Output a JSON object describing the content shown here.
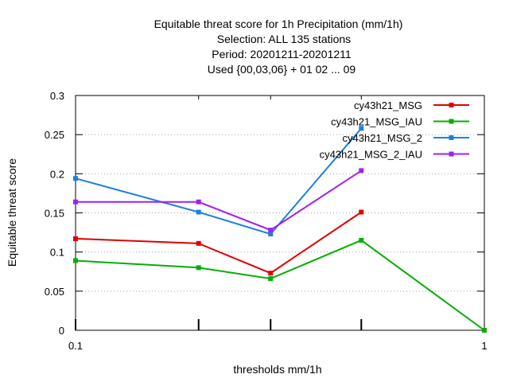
{
  "chart_data": {
    "type": "line",
    "title_lines": [
      "Equitable threat score  for 1h Precipitation (mm/1h)",
      "Selection: ALL    135 stations",
      "Period: 20201211-20201211",
      "Used {00,03,06} + 01 02 ... 09"
    ],
    "xlabel": "thresholds mm/1h",
    "ylabel": "Equitable threat score",
    "x_scale": "log",
    "xlim": [
      0.1,
      1
    ],
    "ylim": [
      0,
      0.3
    ],
    "x_ticks": [
      {
        "value": 0.1,
        "label": "0.1"
      },
      {
        "value": 1,
        "label": "1"
      }
    ],
    "x_minor_ticks": [
      0.2,
      0.3,
      0.5
    ],
    "y_ticks": [
      {
        "value": 0,
        "label": "0"
      },
      {
        "value": 0.05,
        "label": "0.05"
      },
      {
        "value": 0.1,
        "label": "0.1"
      },
      {
        "value": 0.15,
        "label": "0.15"
      },
      {
        "value": 0.2,
        "label": "0.2"
      },
      {
        "value": 0.25,
        "label": "0.25"
      },
      {
        "value": 0.3,
        "label": "0.3"
      }
    ],
    "grid": "horizontal dotted",
    "legend_position": "top-right",
    "series": [
      {
        "name": "cy43h21_MSG",
        "color": "#e00000",
        "points": [
          [
            0.1,
            0.117
          ],
          [
            0.2,
            0.111
          ],
          [
            0.3,
            0.073
          ],
          [
            0.5,
            0.151
          ]
        ]
      },
      {
        "name": "cy43h21_MSG_IAU",
        "color": "#00b000",
        "points": [
          [
            0.1,
            0.089
          ],
          [
            0.2,
            0.08
          ],
          [
            0.3,
            0.066
          ],
          [
            0.5,
            0.115
          ],
          [
            1,
            0.0
          ]
        ]
      },
      {
        "name": "cy43h21_MSG_2",
        "color": "#1e7fe0",
        "points": [
          [
            0.1,
            0.194
          ],
          [
            0.2,
            0.151
          ],
          [
            0.3,
            0.123
          ],
          [
            0.5,
            0.258
          ]
        ]
      },
      {
        "name": "cy43h21_MSG_2_IAU",
        "color": "#a020f0",
        "points": [
          [
            0.1,
            0.164
          ],
          [
            0.2,
            0.164
          ],
          [
            0.3,
            0.128
          ],
          [
            0.5,
            0.204
          ]
        ]
      }
    ]
  }
}
